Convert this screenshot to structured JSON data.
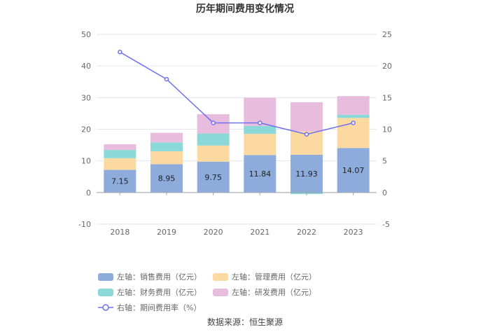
{
  "chart_data": {
    "type": "bar",
    "stacked": true,
    "title": "历年期间费用变化情况",
    "categories": [
      "2018",
      "2019",
      "2020",
      "2021",
      "2022",
      "2023"
    ],
    "y_left": {
      "min": -10,
      "max": 50,
      "ticks": [
        "-10",
        "0",
        "10",
        "20",
        "30",
        "40",
        "50"
      ]
    },
    "y_right": {
      "min": -5,
      "max": 25,
      "ticks": [
        "-5",
        "0",
        "5",
        "10",
        "15",
        "20",
        "25"
      ]
    },
    "series": [
      {
        "name": "左轴：销售费用（亿元）",
        "axis": "left",
        "kind": "bar",
        "color": "#8dacdb",
        "values": [
          7.15,
          8.95,
          9.75,
          11.84,
          11.93,
          14.07
        ],
        "labels": [
          "7.15",
          "8.95",
          "9.75",
          "11.84",
          "11.93",
          "14.07"
        ]
      },
      {
        "name": "左轴：管理费用（亿元）",
        "axis": "left",
        "kind": "bar",
        "color": "#fcd9a1",
        "values": [
          3.7,
          4.1,
          5.1,
          6.7,
          7.4,
          9.5
        ]
      },
      {
        "name": "左轴：财务费用（亿元）",
        "axis": "left",
        "kind": "bar",
        "color": "#8ad8d8",
        "values": [
          2.6,
          2.8,
          3.8,
          2.5,
          -0.5,
          1.0
        ]
      },
      {
        "name": "左轴：研发费用（亿元）",
        "axis": "left",
        "kind": "bar",
        "color": "#e8bcdc",
        "values": [
          1.8,
          3.0,
          6.1,
          8.9,
          9.2,
          5.9
        ]
      },
      {
        "name": "右轴：期间费用率（%）",
        "axis": "right",
        "kind": "line",
        "color": "#6f71f0",
        "values": [
          22.2,
          17.9,
          11.0,
          11.0,
          9.2,
          11.0
        ]
      }
    ]
  },
  "source": "数据来源：恒生聚源"
}
